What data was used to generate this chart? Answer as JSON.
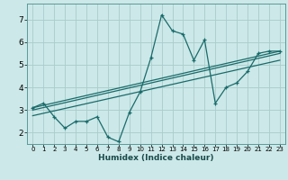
{
  "xlabel": "Humidex (Indice chaleur)",
  "bg_color": "#cce8e8",
  "grid_color": "#aacccc",
  "line_color": "#1a6b6b",
  "xlim": [
    -0.5,
    23.5
  ],
  "ylim": [
    1.5,
    7.7
  ],
  "x_ticks": [
    0,
    1,
    2,
    3,
    4,
    5,
    6,
    7,
    8,
    9,
    10,
    11,
    12,
    13,
    14,
    15,
    16,
    17,
    18,
    19,
    20,
    21,
    22,
    23
  ],
  "y_ticks": [
    2,
    3,
    4,
    5,
    6,
    7
  ],
  "main_x": [
    0,
    1,
    2,
    3,
    4,
    5,
    6,
    7,
    8,
    9,
    10,
    11,
    12,
    13,
    14,
    15,
    16,
    17,
    18,
    19,
    20,
    21,
    22,
    23
  ],
  "main_y": [
    3.1,
    3.3,
    2.7,
    2.2,
    2.5,
    2.5,
    2.7,
    1.8,
    1.6,
    2.9,
    3.8,
    5.3,
    7.2,
    6.5,
    6.35,
    5.2,
    6.1,
    3.3,
    4.0,
    4.2,
    4.7,
    5.5,
    5.6,
    5.6
  ],
  "trend1_x": [
    0,
    23
  ],
  "trend1_y": [
    3.1,
    5.6
  ],
  "trend2_x": [
    0,
    23
  ],
  "trend2_y": [
    3.0,
    5.5
  ],
  "trend3_x": [
    0,
    23
  ],
  "trend3_y": [
    2.75,
    5.2
  ]
}
